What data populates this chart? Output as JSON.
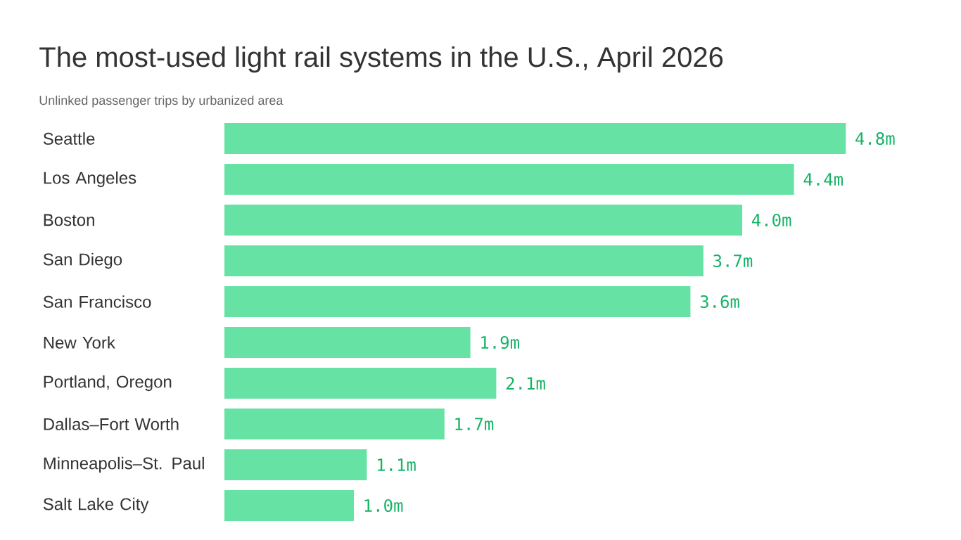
{
  "chart_data": {
    "type": "bar",
    "orientation": "horizontal",
    "title": "The most-used light rail systems in the U.S., April 2026",
    "subtitle": "Unlinked passenger trips by urbanized area",
    "categories": [
      "Seattle",
      "Los Angeles",
      "Boston",
      "San Diego",
      "San Francisco",
      "New York",
      "Portland, Oregon",
      "Dallas–Fort Worth",
      "Minneapolis–St. Paul",
      "Salt Lake City"
    ],
    "values": [
      4.8,
      4.4,
      4.0,
      3.7,
      3.6,
      1.9,
      2.1,
      1.7,
      1.1,
      1.0
    ],
    "value_labels": [
      "4.8m",
      "4.4m",
      "4.0m",
      "3.7m",
      "3.6m",
      "1.9m",
      "2.1m",
      "1.7m",
      "1.1m",
      "1.0m"
    ],
    "color": "#66e2a5"
  }
}
